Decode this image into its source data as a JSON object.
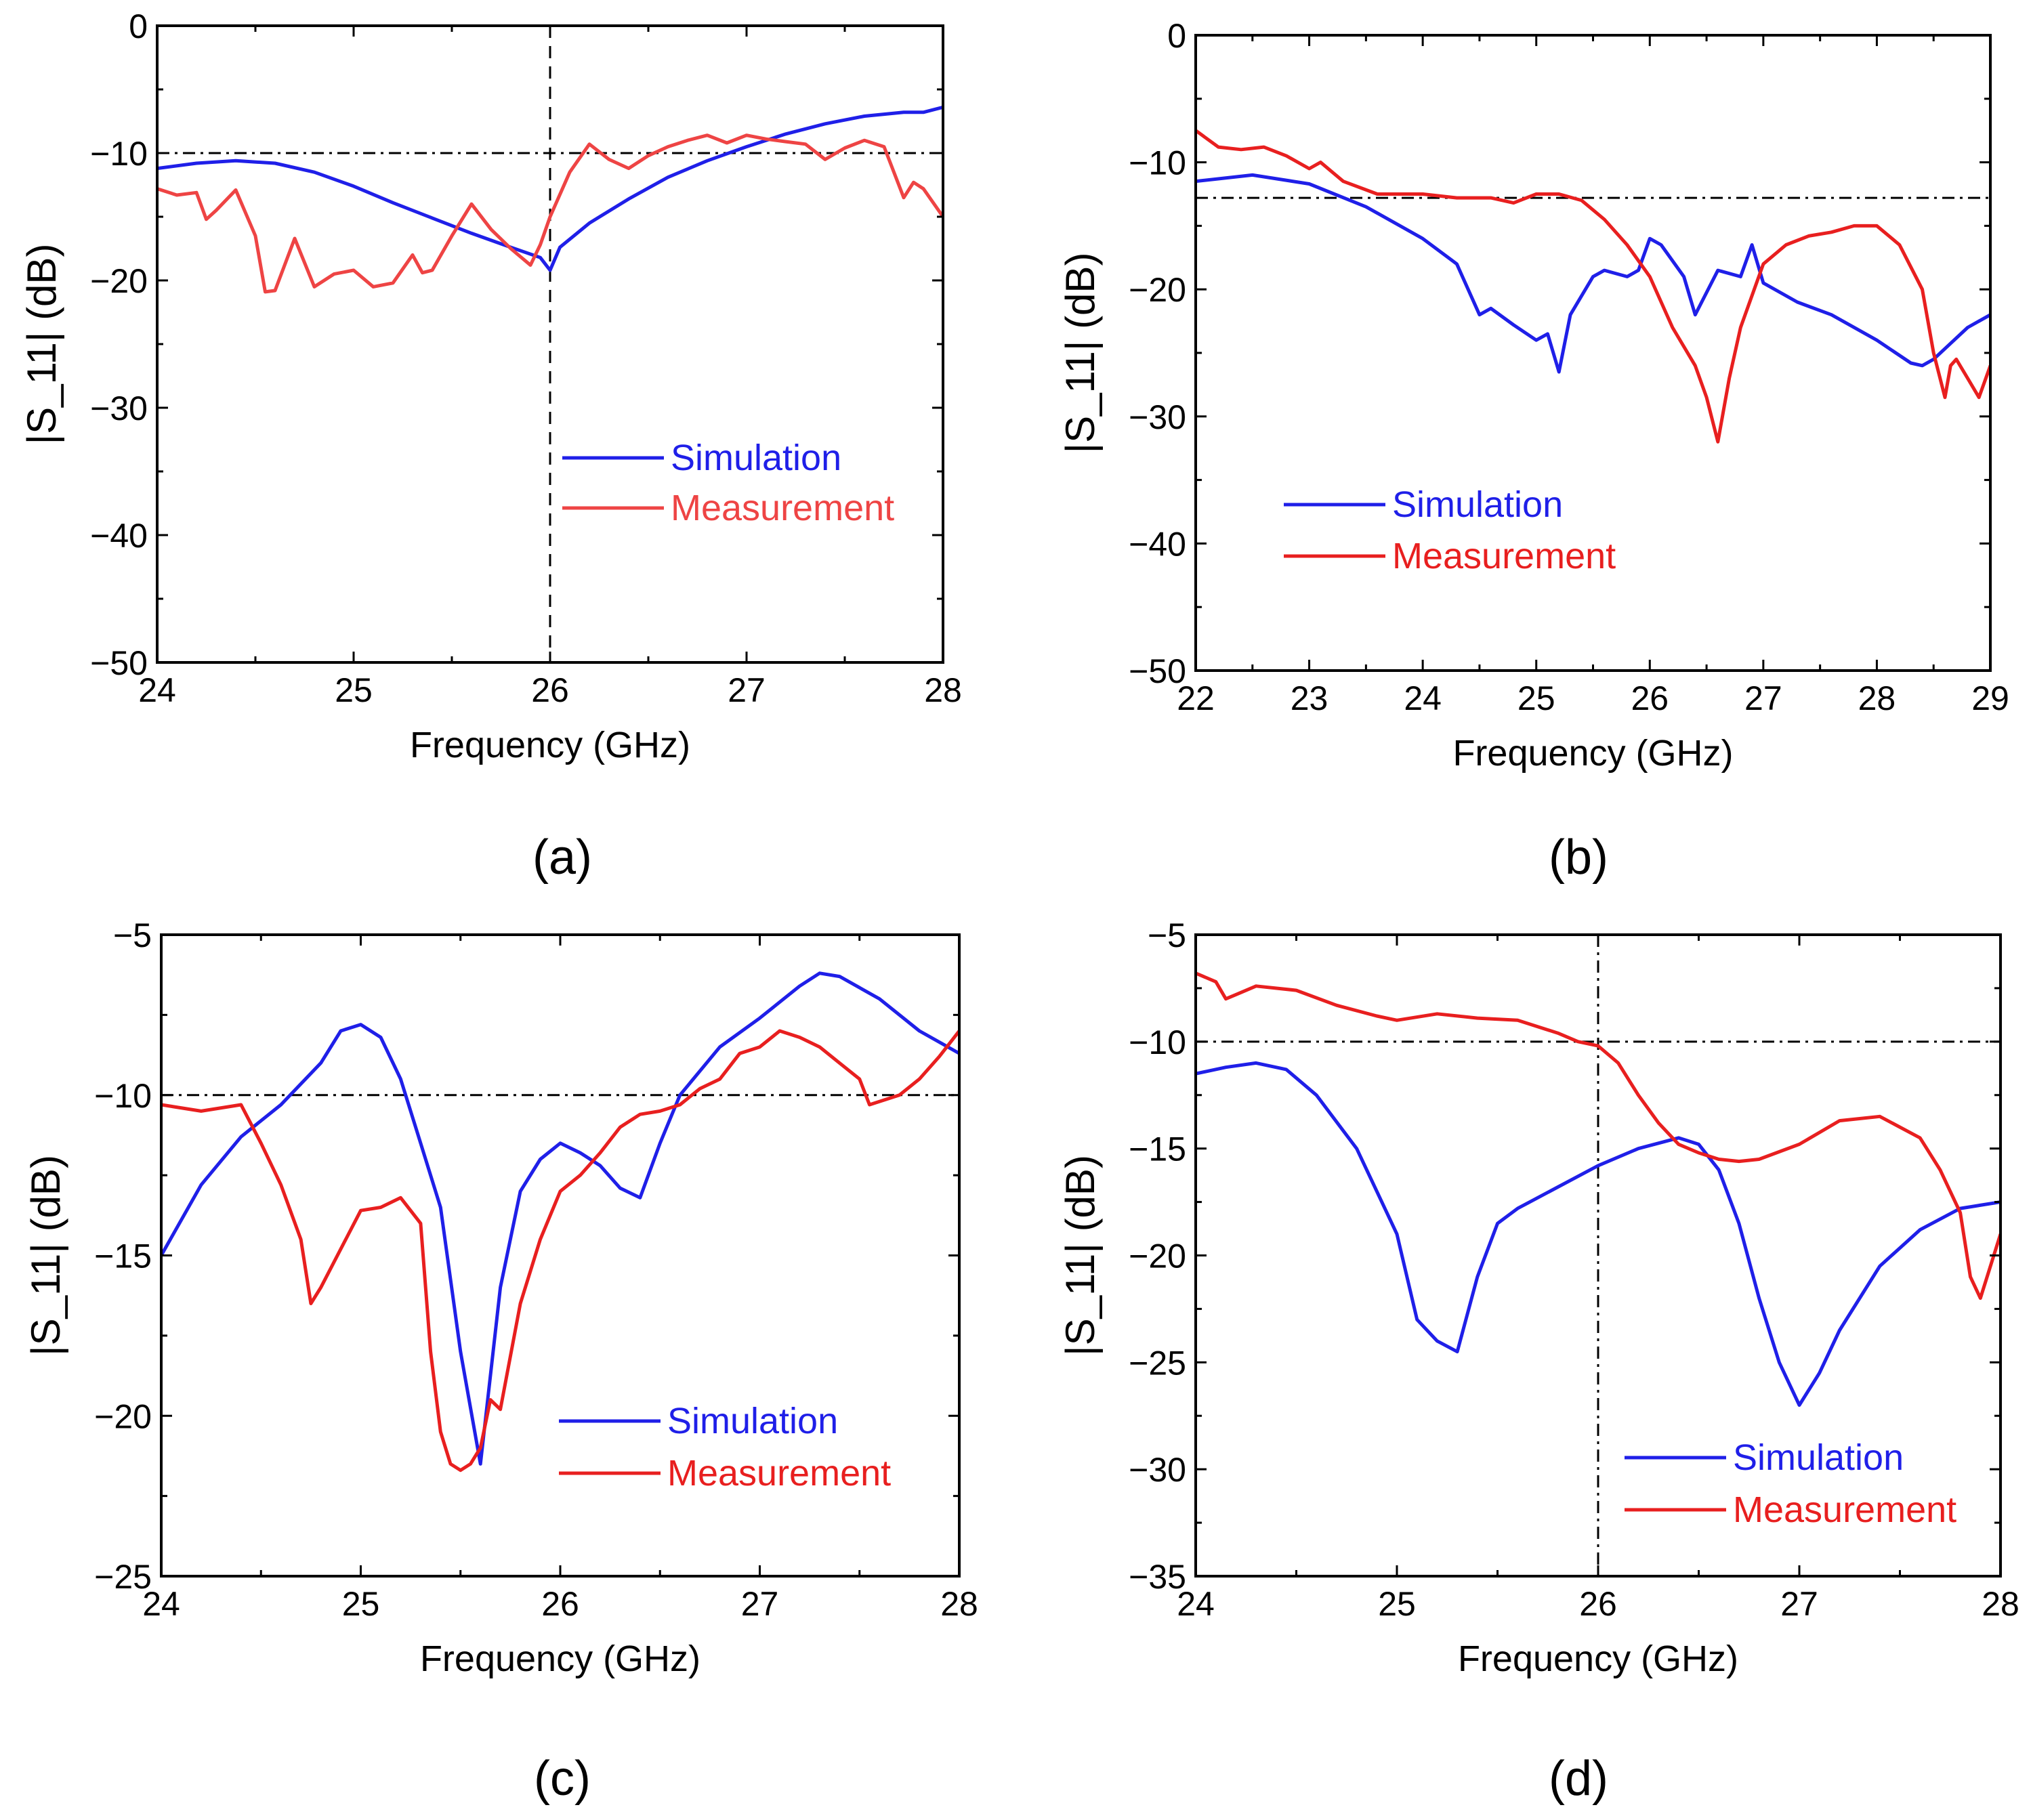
{
  "chart_data": [
    {
      "id": "a",
      "type": "line",
      "panel_label": "(a)",
      "xlabel": "Frequency (GHz)",
      "ylabel": "|S_11| (dB)",
      "xlim": [
        24,
        28
      ],
      "ylim": [
        -50,
        0
      ],
      "xticks": [
        24,
        25,
        26,
        27,
        28
      ],
      "yticks": [
        0,
        -10,
        -20,
        -30,
        -40,
        -50
      ],
      "xtick_labels": [
        "24",
        "25",
        "26",
        "27",
        "28"
      ],
      "ytick_labels": [
        "0",
        "−10",
        "−20",
        "−30",
        "−40",
        "−50"
      ],
      "legend": {
        "position": "lower-right-center",
        "entries": [
          "Simulation",
          "Measurement"
        ]
      },
      "reference_lines": [
        {
          "orientation": "horizontal",
          "value": -10,
          "style": "dashdot"
        },
        {
          "orientation": "vertical",
          "value": 26,
          "style": "dashed"
        }
      ],
      "series": [
        {
          "name": "Simulation",
          "color": "#1f1fe8",
          "x": [
            24,
            24.2,
            24.4,
            24.6,
            24.8,
            25,
            25.2,
            25.4,
            25.6,
            25.8,
            25.95,
            26,
            26.05,
            26.2,
            26.4,
            26.6,
            26.8,
            27,
            27.2,
            27.4,
            27.6,
            27.8,
            27.9,
            28
          ],
          "y": [
            -11.2,
            -10.8,
            -10.6,
            -10.8,
            -11.5,
            -12.6,
            -13.9,
            -15.1,
            -16.3,
            -17.4,
            -18.2,
            -19.2,
            -17.4,
            -15.5,
            -13.6,
            -11.9,
            -10.6,
            -9.5,
            -8.5,
            -7.7,
            -7.1,
            -6.8,
            -6.8,
            -6.4
          ]
        },
        {
          "name": "Measurement",
          "color": "#ee4444",
          "x": [
            24,
            24.1,
            24.2,
            24.25,
            24.3,
            24.4,
            24.5,
            24.55,
            24.6,
            24.7,
            24.8,
            24.85,
            24.9,
            25,
            25.1,
            25.2,
            25.3,
            25.35,
            25.4,
            25.5,
            25.6,
            25.7,
            25.8,
            25.9,
            25.95,
            26,
            26.1,
            26.2,
            26.3,
            26.4,
            26.5,
            26.6,
            26.7,
            26.8,
            26.9,
            27,
            27.1,
            27.2,
            27.3,
            27.4,
            27.5,
            27.6,
            27.7,
            27.8,
            27.85,
            27.9,
            28
          ],
          "y": [
            -12.8,
            -13.3,
            -13.1,
            -15.2,
            -14.5,
            -12.9,
            -16.5,
            -20.9,
            -20.8,
            -16.7,
            -20.5,
            -20.0,
            -19.5,
            -19.2,
            -20.5,
            -20.2,
            -18.0,
            -19.4,
            -19.2,
            -16.5,
            -14.0,
            -16.0,
            -17.5,
            -18.8,
            -17.2,
            -15.0,
            -11.5,
            -9.3,
            -10.5,
            -11.2,
            -10.2,
            -9.5,
            -9.0,
            -8.6,
            -9.2,
            -8.6,
            -8.9,
            -9.1,
            -9.3,
            -10.5,
            -9.6,
            -9.0,
            -9.5,
            -13.5,
            -12.3,
            -12.8,
            -15.0
          ]
        }
      ]
    },
    {
      "id": "b",
      "type": "line",
      "panel_label": "(b)",
      "xlabel": "Frequency (GHz)",
      "ylabel": "|S_11| (dB)",
      "xlim": [
        22,
        29
      ],
      "ylim": [
        -50,
        0
      ],
      "xticks": [
        22,
        23,
        24,
        25,
        26,
        27,
        28,
        29
      ],
      "yticks": [
        0,
        -10,
        -20,
        -30,
        -40,
        -50
      ],
      "xtick_labels": [
        "22",
        "23",
        "24",
        "25",
        "26",
        "27",
        "28",
        "29"
      ],
      "ytick_labels": [
        "0",
        "−10",
        "−20",
        "−30",
        "−40",
        "−50"
      ],
      "legend": {
        "position": "lower-left",
        "entries": [
          "Simulation",
          "Measurement"
        ]
      },
      "reference_lines": [
        {
          "orientation": "horizontal",
          "value": -12.8,
          "style": "dashdot"
        }
      ],
      "series": [
        {
          "name": "Simulation",
          "color": "#1f1fe8",
          "x": [
            22,
            22.5,
            23,
            23.5,
            24,
            24.3,
            24.5,
            24.6,
            24.8,
            25,
            25.1,
            25.2,
            25.3,
            25.5,
            25.6,
            25.8,
            25.9,
            26,
            26.1,
            26.3,
            26.4,
            26.6,
            26.8,
            26.9,
            27,
            27.3,
            27.6,
            28,
            28.3,
            28.4,
            28.5,
            28.8,
            29
          ],
          "y": [
            -11.5,
            -11.0,
            -11.7,
            -13.5,
            -16.0,
            -18.0,
            -22.0,
            -21.5,
            -22.8,
            -24.0,
            -23.5,
            -26.5,
            -22.0,
            -19.0,
            -18.5,
            -19.0,
            -18.5,
            -16.0,
            -16.5,
            -19.0,
            -22.0,
            -18.5,
            -19.0,
            -16.5,
            -19.5,
            -21.0,
            -22.0,
            -24.0,
            -25.8,
            -26.0,
            -25.5,
            -23.0,
            -22.0
          ]
        },
        {
          "name": "Measurement",
          "color": "#e81f1f",
          "x": [
            22,
            22.2,
            22.4,
            22.6,
            22.8,
            23,
            23.1,
            23.3,
            23.6,
            24,
            24.3,
            24.6,
            24.8,
            25,
            25.2,
            25.4,
            25.6,
            25.8,
            26,
            26.2,
            26.4,
            26.5,
            26.6,
            26.7,
            26.8,
            27,
            27.2,
            27.4,
            27.6,
            27.8,
            28,
            28.2,
            28.4,
            28.5,
            28.6,
            28.65,
            28.7,
            28.8,
            28.9,
            29
          ],
          "y": [
            -7.5,
            -8.8,
            -9.0,
            -8.8,
            -9.5,
            -10.5,
            -10.0,
            -11.5,
            -12.5,
            -12.5,
            -12.8,
            -12.8,
            -13.2,
            -12.5,
            -12.5,
            -13.0,
            -14.5,
            -16.5,
            -19.0,
            -23.0,
            -26.0,
            -28.5,
            -32.0,
            -27.0,
            -23.0,
            -18.0,
            -16.5,
            -15.8,
            -15.5,
            -15.0,
            -15.0,
            -16.5,
            -20.0,
            -25.0,
            -28.5,
            -26.0,
            -25.5,
            -27.0,
            -28.5,
            -26.0
          ]
        }
      ]
    },
    {
      "id": "c",
      "type": "line",
      "panel_label": "(c)",
      "xlabel": "Frequency (GHz)",
      "ylabel": "|S_11| (dB)",
      "xlim": [
        24,
        28
      ],
      "ylim": [
        -25,
        -5
      ],
      "xticks": [
        24,
        25,
        26,
        27,
        28
      ],
      "yticks": [
        -5,
        -10,
        -15,
        -20,
        -25
      ],
      "xtick_labels": [
        "24",
        "25",
        "26",
        "27",
        "28"
      ],
      "ytick_labels": [
        "−5",
        "−10",
        "−15",
        "−20",
        "−25"
      ],
      "legend": {
        "position": "lower-right",
        "entries": [
          "Simulation",
          "Measurement"
        ]
      },
      "reference_lines": [
        {
          "orientation": "horizontal",
          "value": -10,
          "style": "dashdot"
        }
      ],
      "series": [
        {
          "name": "Simulation",
          "color": "#1f1fe8",
          "x": [
            24,
            24.2,
            24.4,
            24.6,
            24.8,
            24.9,
            25,
            25.1,
            25.2,
            25.3,
            25.4,
            25.5,
            25.6,
            25.7,
            25.8,
            25.9,
            26,
            26.1,
            26.2,
            26.3,
            26.4,
            26.5,
            26.6,
            26.8,
            27,
            27.2,
            27.3,
            27.4,
            27.6,
            27.8,
            28
          ],
          "y": [
            -15.0,
            -12.8,
            -11.3,
            -10.3,
            -9.0,
            -8.0,
            -7.8,
            -8.2,
            -9.5,
            -11.5,
            -13.5,
            -18.0,
            -21.5,
            -16.0,
            -13.0,
            -12.0,
            -11.5,
            -11.8,
            -12.2,
            -12.9,
            -13.2,
            -11.5,
            -10.0,
            -8.5,
            -7.6,
            -6.6,
            -6.2,
            -6.3,
            -7.0,
            -8.0,
            -8.7
          ]
        },
        {
          "name": "Measurement",
          "color": "#e81f1f",
          "x": [
            24,
            24.2,
            24.4,
            24.5,
            24.6,
            24.7,
            24.75,
            24.8,
            24.9,
            25,
            25.1,
            25.2,
            25.3,
            25.35,
            25.4,
            25.45,
            25.5,
            25.55,
            25.6,
            25.65,
            25.7,
            25.8,
            25.9,
            26,
            26.1,
            26.2,
            26.3,
            26.4,
            26.5,
            26.6,
            26.7,
            26.8,
            26.9,
            27,
            27.1,
            27.2,
            27.3,
            27.4,
            27.5,
            27.55,
            27.6,
            27.7,
            27.8,
            27.9,
            28
          ],
          "y": [
            -10.3,
            -10.5,
            -10.3,
            -11.5,
            -12.8,
            -14.5,
            -16.5,
            -16.0,
            -14.8,
            -13.6,
            -13.5,
            -13.2,
            -14.0,
            -18.0,
            -20.5,
            -21.5,
            -21.7,
            -21.5,
            -21.0,
            -19.5,
            -19.8,
            -16.5,
            -14.5,
            -13.0,
            -12.5,
            -11.8,
            -11.0,
            -10.6,
            -10.5,
            -10.3,
            -9.8,
            -9.5,
            -8.7,
            -8.5,
            -8.0,
            -8.2,
            -8.5,
            -9.0,
            -9.5,
            -10.3,
            -10.2,
            -10.0,
            -9.5,
            -8.8,
            -8.0
          ]
        }
      ]
    },
    {
      "id": "d",
      "type": "line",
      "panel_label": "(d)",
      "xlabel": "Frequency (GHz)",
      "ylabel": "|S_11| (dB)",
      "xlim": [
        24,
        28
      ],
      "ylim": [
        -35,
        -5
      ],
      "xticks": [
        24,
        25,
        26,
        27,
        28
      ],
      "yticks": [
        -5,
        -10,
        -15,
        -20,
        -25,
        -30,
        -35
      ],
      "xtick_labels": [
        "24",
        "25",
        "26",
        "27",
        "28"
      ],
      "ytick_labels": [
        "−5",
        "−10",
        "−15",
        "−20",
        "−25",
        "−30",
        "−35"
      ],
      "legend": {
        "position": "lower-right",
        "entries": [
          "Simulation",
          "Measurement"
        ]
      },
      "reference_lines": [
        {
          "orientation": "horizontal",
          "value": -10,
          "style": "dashdot"
        },
        {
          "orientation": "vertical",
          "value": 26,
          "style": "dashdot"
        }
      ],
      "series": [
        {
          "name": "Simulation",
          "color": "#1f1fe8",
          "x": [
            24,
            24.15,
            24.3,
            24.45,
            24.6,
            24.8,
            25,
            25.1,
            25.2,
            25.3,
            25.4,
            25.5,
            25.6,
            25.8,
            26,
            26.2,
            26.4,
            26.5,
            26.6,
            26.7,
            26.8,
            26.9,
            27,
            27.1,
            27.2,
            27.4,
            27.6,
            27.8,
            28
          ],
          "y": [
            -11.5,
            -11.2,
            -11.0,
            -11.3,
            -12.5,
            -15.0,
            -19.0,
            -23.0,
            -24.0,
            -24.5,
            -21.0,
            -18.5,
            -17.8,
            -16.8,
            -15.8,
            -15.0,
            -14.5,
            -14.8,
            -16.0,
            -18.5,
            -22.0,
            -25.0,
            -27.0,
            -25.5,
            -23.5,
            -20.5,
            -18.8,
            -17.8,
            -17.5
          ]
        },
        {
          "name": "Measurement",
          "color": "#e81f1f",
          "x": [
            24,
            24.1,
            24.15,
            24.2,
            24.3,
            24.5,
            24.7,
            24.9,
            25,
            25.2,
            25.4,
            25.6,
            25.8,
            25.9,
            26,
            26.1,
            26.2,
            26.3,
            26.4,
            26.5,
            26.6,
            26.7,
            26.8,
            27,
            27.2,
            27.4,
            27.6,
            27.7,
            27.8,
            27.85,
            27.9,
            28
          ],
          "y": [
            -6.8,
            -7.2,
            -8.0,
            -7.8,
            -7.4,
            -7.6,
            -8.3,
            -8.8,
            -9.0,
            -8.7,
            -8.9,
            -9.0,
            -9.6,
            -10.0,
            -10.2,
            -11.0,
            -12.5,
            -13.8,
            -14.8,
            -15.2,
            -15.5,
            -15.6,
            -15.5,
            -14.8,
            -13.7,
            -13.5,
            -14.5,
            -16.0,
            -18.0,
            -21.0,
            -22.0,
            -19.0
          ]
        }
      ]
    }
  ]
}
